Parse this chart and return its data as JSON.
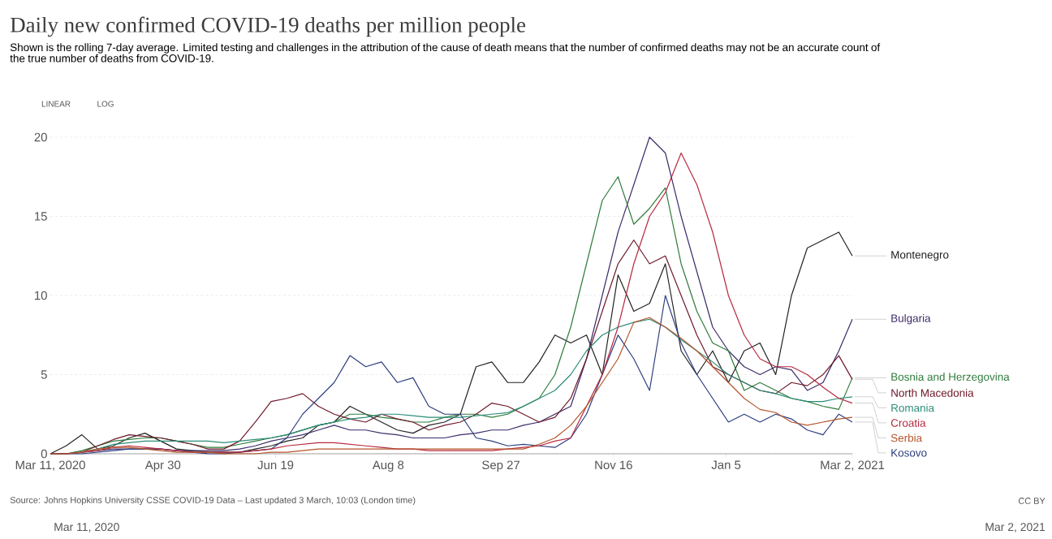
{
  "chart_data": {
    "type": "line",
    "title": "Daily new confirmed COVID-19 deaths per million people",
    "subtitle": "Shown is the rolling 7-day average. Limited testing and challenges in the attribution of the cause of death means that the number of confirmed deaths may not be an accurate count of the true number of deaths from COVID-19.",
    "annotations": [
      "Source: Johns Hopkins University CSSE COVID-19 Data – Last updated 3 March, 10:03 (London time)",
      "CC BY",
      "LINEAR",
      "LOG",
      "Mar 11, 2020",
      "Mar 2, 2021"
    ],
    "x": [
      "2020-03-11",
      "2020-03-18",
      "2020-03-25",
      "2020-04-01",
      "2020-04-08",
      "2020-04-15",
      "2020-04-22",
      "2020-04-29",
      "2020-05-06",
      "2020-05-13",
      "2020-05-20",
      "2020-05-27",
      "2020-06-03",
      "2020-06-10",
      "2020-06-17",
      "2020-06-24",
      "2020-07-01",
      "2020-07-08",
      "2020-07-15",
      "2020-07-22",
      "2020-07-29",
      "2020-08-05",
      "2020-08-12",
      "2020-08-19",
      "2020-08-26",
      "2020-09-02",
      "2020-09-09",
      "2020-09-16",
      "2020-09-23",
      "2020-09-30",
      "2020-10-07",
      "2020-10-14",
      "2020-10-21",
      "2020-10-28",
      "2020-11-04",
      "2020-11-11",
      "2020-11-18",
      "2020-11-25",
      "2020-12-02",
      "2020-12-09",
      "2020-12-16",
      "2020-12-23",
      "2020-12-30",
      "2021-01-06",
      "2021-01-13",
      "2021-01-20",
      "2021-01-27",
      "2021-02-03",
      "2021-02-10",
      "2021-02-17",
      "2021-02-24",
      "2021-03-02"
    ],
    "series": [
      {
        "name": "Montenegro",
        "color": "#222222",
        "values": [
          0,
          0.5,
          1.2,
          0.3,
          0.5,
          1.0,
          1.3,
          0.8,
          0.3,
          0.2,
          0.1,
          0.1,
          0.1,
          0.3,
          0.5,
          0.8,
          1.0,
          1.8,
          2.0,
          3.0,
          2.5,
          2.0,
          1.5,
          1.3,
          1.8,
          2.0,
          2.5,
          5.5,
          5.8,
          4.5,
          4.5,
          5.8,
          7.5,
          7.0,
          7.5,
          5.0,
          11.3,
          9.0,
          9.5,
          12.0,
          6.5,
          5.0,
          6.5,
          4.5,
          6.5,
          7.0,
          5.0,
          10.0,
          13.0,
          13.5,
          14.0,
          12.5
        ]
      },
      {
        "name": "Bulgaria",
        "color": "#3d2b6b",
        "values": [
          0,
          0,
          0.1,
          0.2,
          0.3,
          0.3,
          0.3,
          0.3,
          0.2,
          0.2,
          0.2,
          0.2,
          0.3,
          0.5,
          0.8,
          1.0,
          1.2,
          1.5,
          1.8,
          1.5,
          1.5,
          1.3,
          1.2,
          1.0,
          1.0,
          1.0,
          1.2,
          1.3,
          1.5,
          1.5,
          1.8,
          2.0,
          2.5,
          3.0,
          6.0,
          10.0,
          14.0,
          17.0,
          20.0,
          19.0,
          15.0,
          11.5,
          8.0,
          6.5,
          5.5,
          5.0,
          5.5,
          5.3,
          4.0,
          4.5,
          6.5,
          8.5
        ]
      },
      {
        "name": "Bosnia and Herzegovina",
        "color": "#2e7b3b",
        "values": [
          0,
          0,
          0.2,
          0.5,
          0.8,
          0.9,
          1.0,
          1.0,
          0.8,
          0.6,
          0.4,
          0.4,
          0.6,
          0.8,
          1.0,
          1.2,
          1.5,
          1.8,
          2.0,
          2.5,
          2.5,
          2.3,
          2.2,
          2.0,
          2.0,
          2.3,
          2.5,
          2.5,
          2.3,
          2.5,
          3.0,
          3.5,
          5.0,
          8.0,
          12.0,
          16.0,
          17.5,
          14.5,
          15.5,
          16.8,
          12.0,
          9.0,
          7.0,
          6.5,
          4.0,
          4.5,
          4.0,
          3.5,
          3.3,
          3.0,
          2.8,
          4.8
        ]
      },
      {
        "name": "North Macedonia",
        "color": "#6e1a2a",
        "values": [
          0,
          0,
          0.1,
          0.5,
          0.9,
          1.2,
          1.1,
          1.0,
          0.8,
          0.6,
          0.3,
          0.3,
          0.8,
          2.0,
          3.3,
          3.5,
          3.8,
          3.0,
          2.5,
          2.2,
          2.0,
          2.5,
          2.2,
          2.0,
          1.5,
          1.8,
          2.0,
          2.5,
          3.2,
          3.0,
          2.5,
          2.0,
          2.3,
          3.5,
          6.0,
          9.0,
          12.0,
          13.5,
          12.0,
          12.5,
          10.0,
          7.5,
          5.5,
          5.0,
          4.5,
          4.0,
          3.8,
          4.5,
          4.3,
          5.0,
          6.2,
          4.7
        ]
      },
      {
        "name": "Romania",
        "color": "#2a8c78",
        "values": [
          0,
          0,
          0.1,
          0.3,
          0.6,
          0.7,
          0.8,
          0.8,
          0.8,
          0.8,
          0.8,
          0.7,
          0.8,
          0.9,
          1.0,
          1.2,
          1.5,
          1.8,
          2.0,
          2.2,
          2.3,
          2.5,
          2.5,
          2.4,
          2.3,
          2.3,
          2.3,
          2.4,
          2.5,
          2.6,
          3.0,
          3.5,
          4.0,
          5.0,
          6.5,
          7.5,
          8.0,
          8.3,
          8.5,
          8.0,
          7.2,
          6.5,
          5.8,
          5.0,
          4.5,
          4.0,
          3.8,
          3.5,
          3.3,
          3.3,
          3.5,
          3.6
        ]
      },
      {
        "name": "Kosovo",
        "color": "#2c3e7e",
        "values": [
          0,
          0,
          0,
          0.1,
          0.2,
          0.3,
          0.3,
          0.3,
          0.2,
          0.1,
          0,
          0,
          0.1,
          0.2,
          0.3,
          1.0,
          2.5,
          3.5,
          4.5,
          6.2,
          5.5,
          5.8,
          4.5,
          4.8,
          3.0,
          2.5,
          2.5,
          1.0,
          0.8,
          0.5,
          0.6,
          0.5,
          0.4,
          1.0,
          2.5,
          5.0,
          7.5,
          6.0,
          4.0,
          10.0,
          7.0,
          5.0,
          3.5,
          2.0,
          2.5,
          2.0,
          2.5,
          2.2,
          1.5,
          1.2,
          2.5,
          2.0
        ]
      },
      {
        "name": "Croatia",
        "color": "#b8283f",
        "values": [
          0,
          0,
          0.1,
          0.2,
          0.4,
          0.5,
          0.4,
          0.3,
          0.2,
          0.1,
          0.1,
          0.1,
          0.1,
          0.2,
          0.3,
          0.5,
          0.6,
          0.7,
          0.7,
          0.6,
          0.5,
          0.4,
          0.3,
          0.3,
          0.2,
          0.2,
          0.2,
          0.2,
          0.2,
          0.3,
          0.4,
          0.5,
          0.8,
          1.0,
          3.0,
          5.0,
          8.0,
          12.0,
          15.0,
          16.5,
          19.0,
          17.0,
          14.0,
          10.0,
          7.5,
          6.0,
          5.5,
          5.5,
          5.0,
          4.2,
          3.5,
          3.2
        ]
      },
      {
        "name": "Serbia",
        "color": "#b5542a",
        "values": [
          0,
          0,
          0.1,
          0.3,
          0.4,
          0.4,
          0.3,
          0.2,
          0.1,
          0.1,
          0.1,
          0,
          0,
          0,
          0.1,
          0.1,
          0.2,
          0.3,
          0.3,
          0.3,
          0.3,
          0.3,
          0.3,
          0.3,
          0.3,
          0.3,
          0.3,
          0.3,
          0.3,
          0.3,
          0.3,
          0.6,
          1.0,
          1.8,
          3.0,
          4.5,
          6.0,
          8.3,
          8.6,
          8.0,
          7.3,
          6.5,
          5.5,
          4.5,
          3.5,
          2.8,
          2.6,
          2.0,
          1.8,
          2.0,
          2.2,
          2.3
        ]
      }
    ],
    "xlim": [
      "2020-03-11",
      "2021-03-02"
    ],
    "xticks": [
      {
        "value": "2020-03-11",
        "label": "Mar 11, 2020"
      },
      {
        "value": "2020-04-30",
        "label": "Apr 30"
      },
      {
        "value": "2020-06-19",
        "label": "Jun 19"
      },
      {
        "value": "2020-08-08",
        "label": "Aug 8"
      },
      {
        "value": "2020-09-27",
        "label": "Sep 27"
      },
      {
        "value": "2020-11-16",
        "label": "Nov 16"
      },
      {
        "value": "2021-01-05",
        "label": "Jan 5"
      },
      {
        "value": "2021-03-02",
        "label": "Mar 2, 2021"
      }
    ],
    "ylim": [
      0,
      20
    ],
    "yticks": [
      0,
      5,
      10,
      15,
      20
    ],
    "grid": "y"
  }
}
